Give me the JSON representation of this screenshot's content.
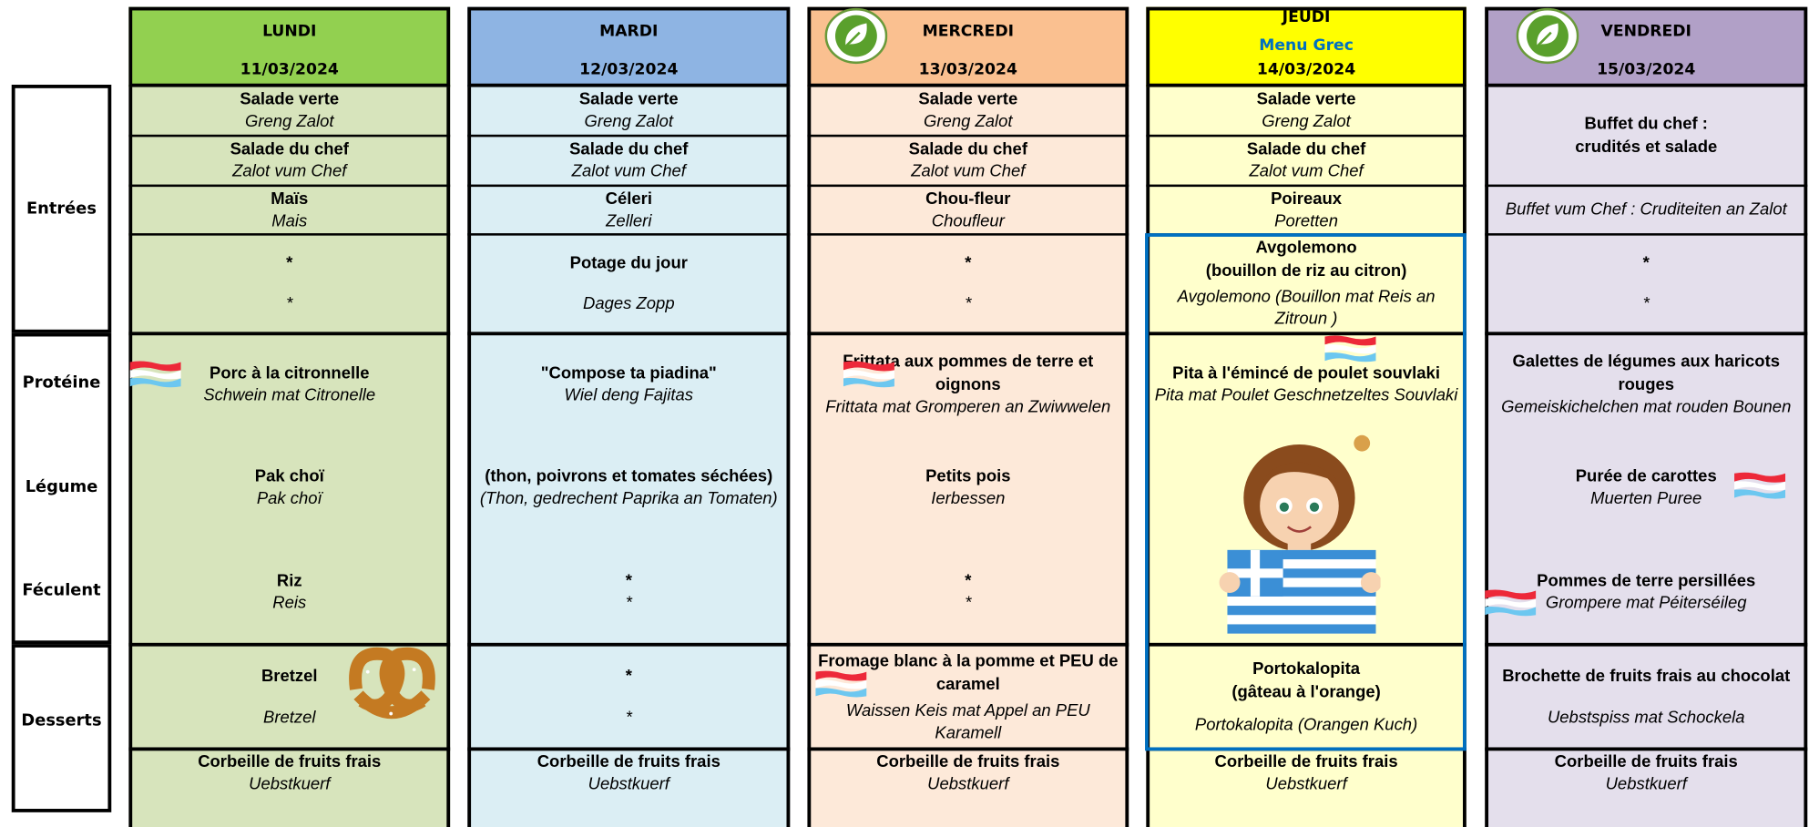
{
  "row_labels": [
    "Entrées",
    "Protéine",
    "Légume",
    "Féculent",
    "Desserts"
  ],
  "days": [
    {
      "name": "LUNDI",
      "date": "11/03/2024",
      "entrees": [
        {
          "fr": "Salade verte",
          "lu": "Greng Zalot"
        },
        {
          "fr": "Salade du chef",
          "lu": "Zalot vum Chef"
        },
        {
          "fr": "Maïs",
          "lu": "Mais"
        },
        {
          "fr": "*",
          "lu": "*"
        }
      ],
      "proteine": {
        "fr": "Porc à la citronnelle",
        "lu": "Schwein mat Citronelle"
      },
      "legume": {
        "fr": "Pak choï",
        "lu": "Pak choï"
      },
      "feculent": {
        "fr": "Riz",
        "lu": "Reis"
      },
      "dessert": {
        "fr": "Bretzel",
        "lu": "Bretzel"
      },
      "fruit": {
        "fr": "Corbeille de fruits frais",
        "lu": "Uebstkuerf"
      }
    },
    {
      "name": "MARDI",
      "date": "12/03/2024",
      "entrees": [
        {
          "fr": "Salade verte",
          "lu": "Greng Zalot"
        },
        {
          "fr": "Salade du chef",
          "lu": "Zalot vum Chef"
        },
        {
          "fr": "Céleri",
          "lu": "Zelleri"
        },
        {
          "fr": "Potage du jour",
          "lu": "Dages Zopp"
        }
      ],
      "proteine": {
        "fr": "\"Compose ta piadina\"",
        "lu": "Wiel deng Fajitas"
      },
      "legume": {
        "fr": "(thon, poivrons et tomates séchées)",
        "lu": "(Thon, gedrechent Paprika an Tomaten)"
      },
      "feculent": {
        "fr": "*",
        "lu": "*"
      },
      "dessert": {
        "fr": "*",
        "lu": "*"
      },
      "fruit": {
        "fr": "Corbeille de fruits frais",
        "lu": "Uebstkuerf"
      }
    },
    {
      "name": "MERCREDI",
      "date": "13/03/2024",
      "entrees": [
        {
          "fr": "Salade verte",
          "lu": "Greng Zalot"
        },
        {
          "fr": "Salade du chef",
          "lu": "Zalot vum Chef"
        },
        {
          "fr": "Chou-fleur",
          "lu": "Choufleur"
        },
        {
          "fr": "*",
          "lu": "*"
        }
      ],
      "proteine": {
        "fr": "Frittata aux pommes de terre et oignons",
        "lu": "Frittata mat Gromperen an Zwiwwelen"
      },
      "legume": {
        "fr": "Petits pois",
        "lu": "Ierbessen"
      },
      "feculent": {
        "fr": "*",
        "lu": "*"
      },
      "dessert": {
        "fr": "Fromage blanc à la pomme et PEU de caramel",
        "lu": "Waissen Keis mat Appel an PEU Karamell"
      },
      "fruit": {
        "fr": "Corbeille de fruits frais",
        "lu": "Uebstkuerf"
      }
    },
    {
      "name": "JEUDI",
      "subtitle": "Menu Grec",
      "date": "14/03/2024",
      "entrees": [
        {
          "fr": "Salade verte",
          "lu": "Greng Zalot"
        },
        {
          "fr": "Salade du chef",
          "lu": "Zalot vum Chef"
        },
        {
          "fr": "Poireaux",
          "lu": "Poretten"
        },
        {
          "fr": "Avgolemono\n(bouillon de riz au citron)",
          "lu": "Avgolemono (Bouillon mat Reis an Zitroun )"
        }
      ],
      "proteine": {
        "fr": "Pita à l'émincé de poulet souvlaki",
        "lu": "Pita mat Poulet Geschnetzeltes Souvlaki"
      },
      "dessert": {
        "fr": "Portokalopita\n(gâteau à l'orange)",
        "lu": "Portokalopita (Orangen Kuch)"
      },
      "fruit": {
        "fr": "Corbeille de fruits frais",
        "lu": "Uebstkuerf"
      }
    },
    {
      "name": "VENDREDI",
      "date": "15/03/2024",
      "entrees": [
        {
          "fr": "Buffet du chef :\ncrudités et salade"
        },
        {
          "lu": "Buffet vum Chef : Cruditeiten an Zalot"
        },
        {
          "fr": "*",
          "lu": "*"
        }
      ],
      "proteine": {
        "fr": "Galettes de légumes aux haricots rouges",
        "lu": "Gemeiskichelchen mat rouden Bounen"
      },
      "legume": {
        "fr": "Purée de carottes",
        "lu": "Muerten Puree"
      },
      "feculent": {
        "fr": "Pommes de terre persillées",
        "lu": "Grompere mat Péiterséileg"
      },
      "dessert": {
        "fr": "Brochette de fruits frais au chocolat",
        "lu": "Uebstspiss mat Schockela"
      },
      "fruit": {
        "fr": "Corbeille de fruits frais",
        "lu": "Uebstkuerf"
      }
    }
  ]
}
